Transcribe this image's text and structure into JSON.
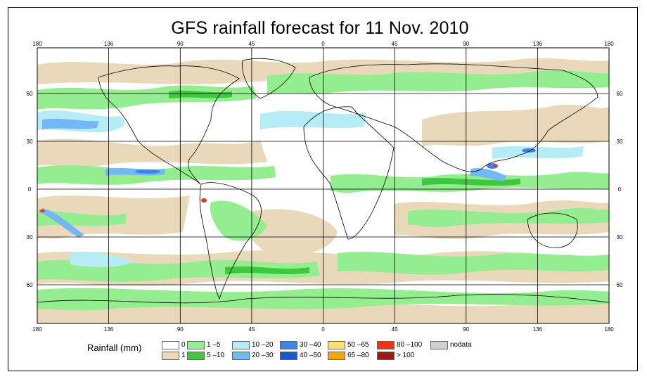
{
  "title": "GFS rainfall forecast for 11 Nov. 2010",
  "lon_ticks": [
    "180",
    "136",
    "90",
    "45",
    "0",
    "45",
    "90",
    "136",
    "180"
  ],
  "lat_ticks": [
    "60",
    "30",
    "0",
    "30",
    "60"
  ],
  "legend": {
    "title": "Rainfall (mm)",
    "entries": [
      {
        "label": "0",
        "color": "#ffffff"
      },
      {
        "label": "1",
        "color": "#ead8bb"
      },
      {
        "label": "1 –5",
        "color": "#94ee90"
      },
      {
        "label": "5 –10",
        "color": "#3fc83f"
      },
      {
        "label": "10 –20",
        "color": "#b6ecf6"
      },
      {
        "label": "20 –30",
        "color": "#73b7f5"
      },
      {
        "label": "30 –40",
        "color": "#3d84e6"
      },
      {
        "label": "40 –50",
        "color": "#1b57d4"
      },
      {
        "label": "50 –65",
        "color": "#ffe170"
      },
      {
        "label": "65 –80",
        "color": "#f7a400"
      },
      {
        "label": "80 –100",
        "color": "#ee3416"
      },
      {
        "label": "> 100",
        "color": "#a61818"
      },
      {
        "label": "nodata",
        "color": "#d0d0d0"
      }
    ]
  }
}
